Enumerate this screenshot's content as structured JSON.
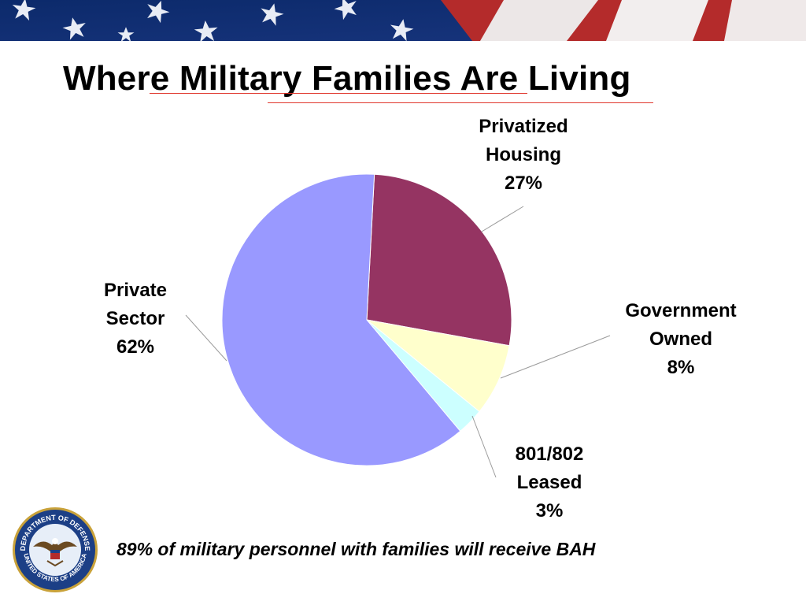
{
  "slide": {
    "title": "Where Military Families Are Living",
    "footnote": "89% of military personnel with families will receive BAH",
    "seal": {
      "top_text": "DEPARTMENT OF DEFENSE",
      "bottom_text": "UNITED STATES OF AMERICA"
    }
  },
  "chart_data": {
    "type": "pie",
    "title": "",
    "slices": [
      {
        "label_lines": [
          "Privatized",
          "Housing"
        ],
        "value": 27,
        "value_label": "27%",
        "color": "#953462"
      },
      {
        "label_lines": [
          "Government",
          "Owned"
        ],
        "value": 8,
        "value_label": "8%",
        "color": "#ffffcc"
      },
      {
        "label_lines": [
          "801/802",
          "Leased"
        ],
        "value": 3,
        "value_label": "3%",
        "color": "#ccffff"
      },
      {
        "label_lines": [
          "Private",
          "Sector"
        ],
        "value": 62,
        "value_label": "62%",
        "color": "#9999ff"
      }
    ],
    "legend": "none"
  }
}
